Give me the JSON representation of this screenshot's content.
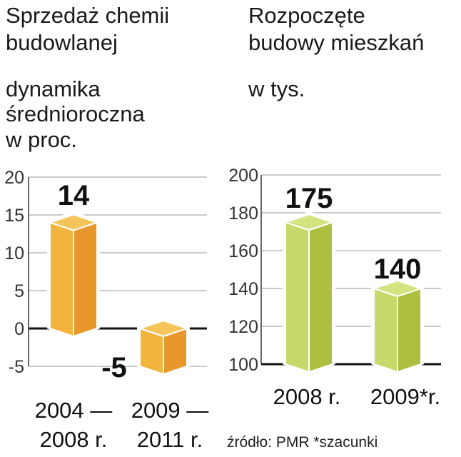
{
  "chart_data": [
    {
      "type": "bar",
      "title": "Sprzedaż chemii budowlanej",
      "title_lines": [
        "Sprzedaż chemii",
        "budowlanej"
      ],
      "subtitle_lines": [
        "dynamika",
        "średnioroczna",
        "w proc."
      ],
      "ylabel": "dynamika średnioroczna w proc.",
      "categories": [
        [
          "2004 —",
          "2008 r."
        ],
        [
          "2009 —",
          "2011 r."
        ]
      ],
      "values": [
        14,
        -5
      ],
      "value_labels": [
        "14",
        "-5"
      ],
      "yticks": [
        "20",
        "15",
        "10",
        "5",
        "0",
        "-5"
      ],
      "ylim": [
        -5,
        20
      ],
      "grid": true,
      "color_front": "#f2b43c",
      "color_side": "#e8982a",
      "color_top": "#f5c45a"
    },
    {
      "type": "bar",
      "title": "Rozpoczęte budowy mieszkań",
      "title_lines": [
        "Rozpoczęte",
        "budowy mieszkań"
      ],
      "subtitle_lines": [
        "w tys."
      ],
      "ylabel": "w tys.",
      "categories": [
        "2008 r.",
        "2009*r."
      ],
      "values": [
        175,
        140
      ],
      "value_labels": [
        "175",
        "140"
      ],
      "yticks": [
        "200",
        "180",
        "160",
        "140",
        "120",
        "100"
      ],
      "ylim": [
        100,
        200
      ],
      "grid": true,
      "color_front": "#c6d96a",
      "color_side": "#aebf3f",
      "color_top": "#d4e27f"
    }
  ],
  "source": "źródło: PMR  *szacunki"
}
